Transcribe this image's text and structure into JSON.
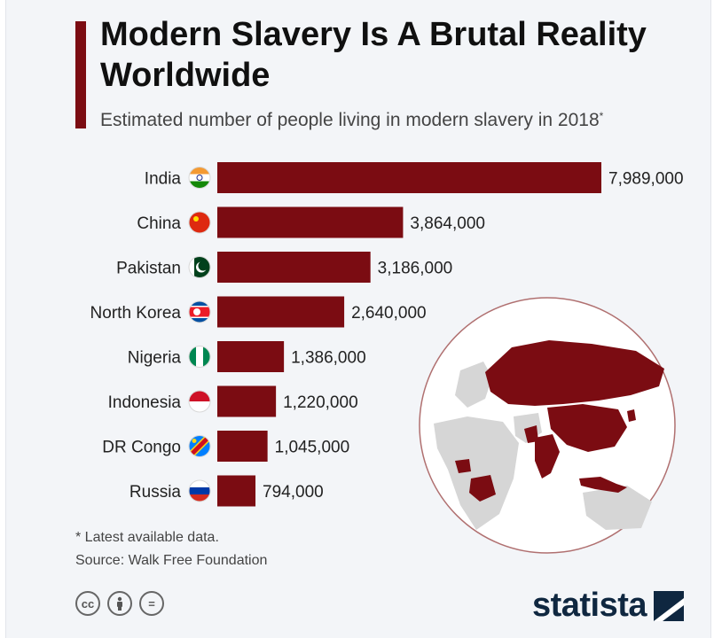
{
  "header": {
    "title": "Modern Slavery Is A Brutal Reality Worldwide",
    "subtitle": "Estimated number of people living in modern slavery in 2018",
    "subtitle_marker": "*"
  },
  "chart_data": {
    "type": "bar",
    "orientation": "horizontal",
    "title": "Modern Slavery Is A Brutal Reality Worldwide",
    "subtitle": "Estimated number of people living in modern slavery in 2018*",
    "categories": [
      "India",
      "China",
      "Pakistan",
      "North Korea",
      "Nigeria",
      "Indonesia",
      "DR Congo",
      "Russia"
    ],
    "values": [
      7989000,
      3864000,
      3186000,
      2640000,
      1386000,
      1220000,
      1045000,
      794000
    ],
    "value_labels": [
      "7,989,000",
      "3,864,000",
      "3,186,000",
      "2,640,000",
      "1,386,000",
      "1,220,000",
      "1,045,000",
      "794,000"
    ],
    "xlim": [
      0,
      7989000
    ],
    "bar_color": "#7b0c12",
    "grid": false,
    "legend": "none"
  },
  "footnotes": {
    "note": "* Latest available data.",
    "source": "Source: Walk Free Foundation"
  },
  "branding": {
    "logo": "statista",
    "license_icons": [
      "cc-icon",
      "by-icon",
      "nd-icon"
    ],
    "cc_text": "cc",
    "nd_text": "="
  },
  "colors": {
    "accent": "#7b0c12",
    "map_highlight": "#7b0c12",
    "map_land": "#d6d6d6",
    "logo_dark": "#0f2740"
  }
}
